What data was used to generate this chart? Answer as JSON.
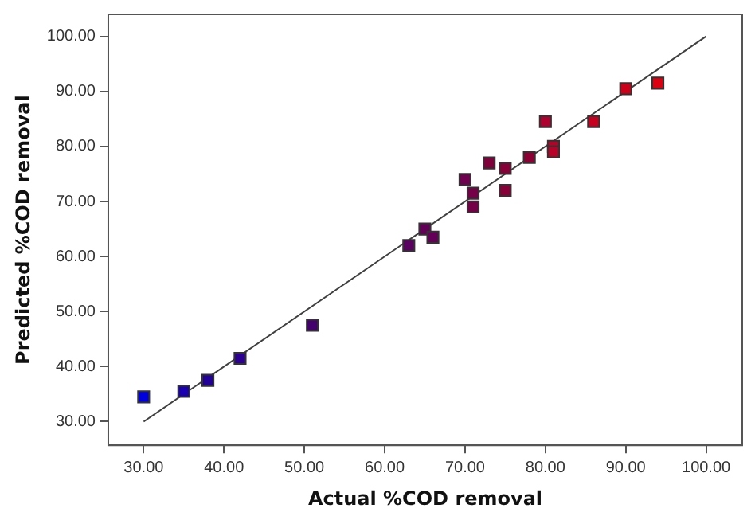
{
  "chart_data": {
    "type": "scatter",
    "xlabel": "Actual %COD removal",
    "ylabel": "Predicted %COD removal",
    "xlim": [
      25.6,
      104.5
    ],
    "ylim": [
      25.7,
      104
    ],
    "xticks": [
      {
        "value": 30,
        "label": "30.00"
      },
      {
        "value": 40,
        "label": "40.00"
      },
      {
        "value": 50,
        "label": "50.00"
      },
      {
        "value": 60,
        "label": "60.00"
      },
      {
        "value": 70,
        "label": "70.00"
      },
      {
        "value": 80,
        "label": "80.00"
      },
      {
        "value": 90,
        "label": "90.00"
      },
      {
        "value": 100,
        "label": "100.00"
      }
    ],
    "yticks": [
      {
        "value": 30,
        "label": "30.00"
      },
      {
        "value": 40,
        "label": "40.00"
      },
      {
        "value": 50,
        "label": "50.00"
      },
      {
        "value": 60,
        "label": "60.00"
      },
      {
        "value": 70,
        "label": "70.00"
      },
      {
        "value": 80,
        "label": "80.00"
      },
      {
        "value": 90,
        "label": "90.00"
      },
      {
        "value": 100,
        "label": "100.00"
      }
    ],
    "grid": false,
    "legend": false,
    "marker": "square",
    "series": [
      {
        "type": "scatter",
        "x": [
          30,
          35,
          38,
          42,
          51,
          63,
          65,
          66,
          70,
          71,
          71,
          73,
          75,
          75,
          78,
          80,
          81,
          81,
          86,
          90,
          94
        ],
        "values": [
          34.5,
          35.5,
          37.5,
          41.5,
          47.5,
          62,
          65,
          63.5,
          74,
          71.5,
          69,
          77,
          76,
          72,
          78,
          84.5,
          80,
          79,
          84.5,
          90.5,
          91.5
        ],
        "colors": [
          "#0000dd",
          "#1a00b0",
          "#22009a",
          "#2c0090",
          "#44006e",
          "#5a0060",
          "#620058",
          "#640058",
          "#700050",
          "#760048",
          "#760048",
          "#80003c",
          "#880038",
          "#880038",
          "#8c0034",
          "#b00030",
          "#b80028",
          "#b80028",
          "#c80020",
          "#cc0018",
          "#dd0010"
        ]
      },
      {
        "type": "line",
        "x": [
          30,
          100
        ],
        "values": [
          30,
          100
        ],
        "color": "#404040",
        "marker": "none"
      }
    ]
  }
}
